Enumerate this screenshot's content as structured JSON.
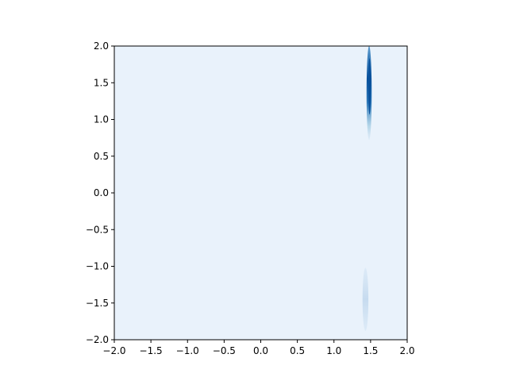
{
  "chart_data": {
    "type": "heatmap",
    "title": "",
    "xlabel": "",
    "ylabel": "",
    "xlim": [
      -2.0,
      2.0
    ],
    "ylim": [
      -2.0,
      2.0
    ],
    "x_ticks": [
      "−2.0",
      "−1.5",
      "−1.0",
      "−0.5",
      "0.0",
      "0.5",
      "1.0",
      "1.5",
      "2.0"
    ],
    "y_ticks": [
      "2.0",
      "1.5",
      "1.0",
      "0.5",
      "0.0",
      "−0.5",
      "−1.0",
      "−1.5",
      "−2.0"
    ],
    "x_tick_values": [
      -2.0,
      -1.5,
      -1.0,
      -0.5,
      0.0,
      0.5,
      1.0,
      1.5,
      2.0
    ],
    "y_tick_values": [
      2.0,
      1.5,
      1.0,
      0.5,
      0.0,
      -0.5,
      -1.0,
      -1.5,
      -2.0
    ],
    "grid": false,
    "legend": "none",
    "colormap": "Blues",
    "background_color": "#e9f2fb",
    "density_regions": [
      {
        "x_center": 1.48,
        "y_range": [
          0.72,
          2.0
        ],
        "x_width": 0.07,
        "peak_y": 1.45,
        "intensity": "high",
        "color": "#08519c"
      },
      {
        "x_center": 1.43,
        "y_range": [
          -1.88,
          -1.02
        ],
        "x_width": 0.08,
        "peak_y": -1.45,
        "intensity": "low",
        "color": "#c6dbef"
      }
    ]
  }
}
